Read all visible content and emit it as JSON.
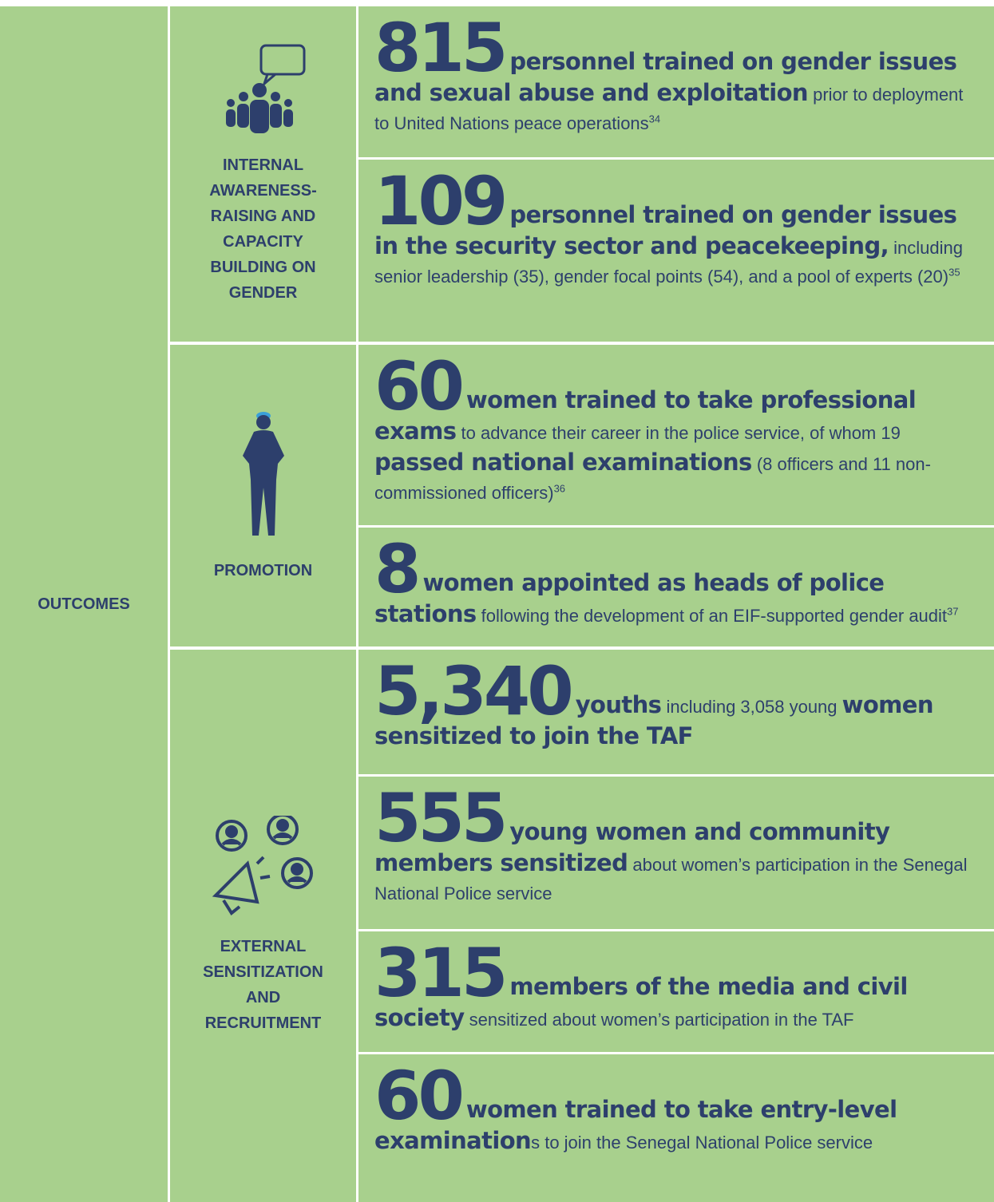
{
  "outcomes_label": "OUTCOMES",
  "groups": [
    {
      "label": "INTERNAL AWARENESS-RAISING AND CAPACITY BUILDING ON GENDER",
      "items": [
        {
          "number": "815",
          "runs": [
            {
              "text": "personnel trained on gender issues and sexual abuse and exploitation",
              "bold": true
            },
            {
              "text": " prior to deployment to United Nations peace operations",
              "bold": false
            }
          ],
          "footnote": "34"
        },
        {
          "number": "109",
          "runs": [
            {
              "text": "personnel trained on gender issues in the security sector and peacekeeping,",
              "bold": true
            },
            {
              "text": " including senior leadership (35), gender focal points (54), and a pool of experts (20)",
              "bold": false
            }
          ],
          "footnote": "35"
        }
      ]
    },
    {
      "label": "PROMOTION",
      "items": [
        {
          "number": "60",
          "runs": [
            {
              "text": "women trained to take professional exams",
              "bold": true
            },
            {
              "text": " to advance their career in the police service, of whom 19 ",
              "bold": false
            },
            {
              "text": "passed national examinations",
              "bold": true
            },
            {
              "text": " (8 officers and 11 non-commissioned officers)",
              "bold": false
            }
          ],
          "footnote": "36"
        },
        {
          "number": "8",
          "runs": [
            {
              "text": "women appointed as heads of police stations",
              "bold": true
            },
            {
              "text": " following the development of an EIF-supported gender audit",
              "bold": false
            }
          ],
          "footnote": "37"
        }
      ]
    },
    {
      "label": "EXTERNAL SENSITIZATION AND RECRUITMENT",
      "items": [
        {
          "number": "5,340",
          "runs": [
            {
              "text": "youths",
              "bold": true
            },
            {
              "text": " including 3,058 young ",
              "bold": false
            },
            {
              "text": "women sensitized to join the TAF",
              "bold": true
            }
          ]
        },
        {
          "number": "555",
          "runs": [
            {
              "text": "young women and community members sensitized",
              "bold": true
            },
            {
              "text": " about women’s participation in the Senegal National Police service",
              "bold": false
            }
          ]
        },
        {
          "number": "315",
          "runs": [
            {
              "text": "members of the media and civil society",
              "bold": true
            },
            {
              "text": " sensitized about women’s participation in the TAF",
              "bold": false
            }
          ]
        },
        {
          "number": "60",
          "runs": [
            {
              "text": "women trained to take entry-level examination",
              "bold": true
            },
            {
              "text": "s to join the Senegal National Police service",
              "bold": false
            }
          ]
        }
      ]
    }
  ]
}
